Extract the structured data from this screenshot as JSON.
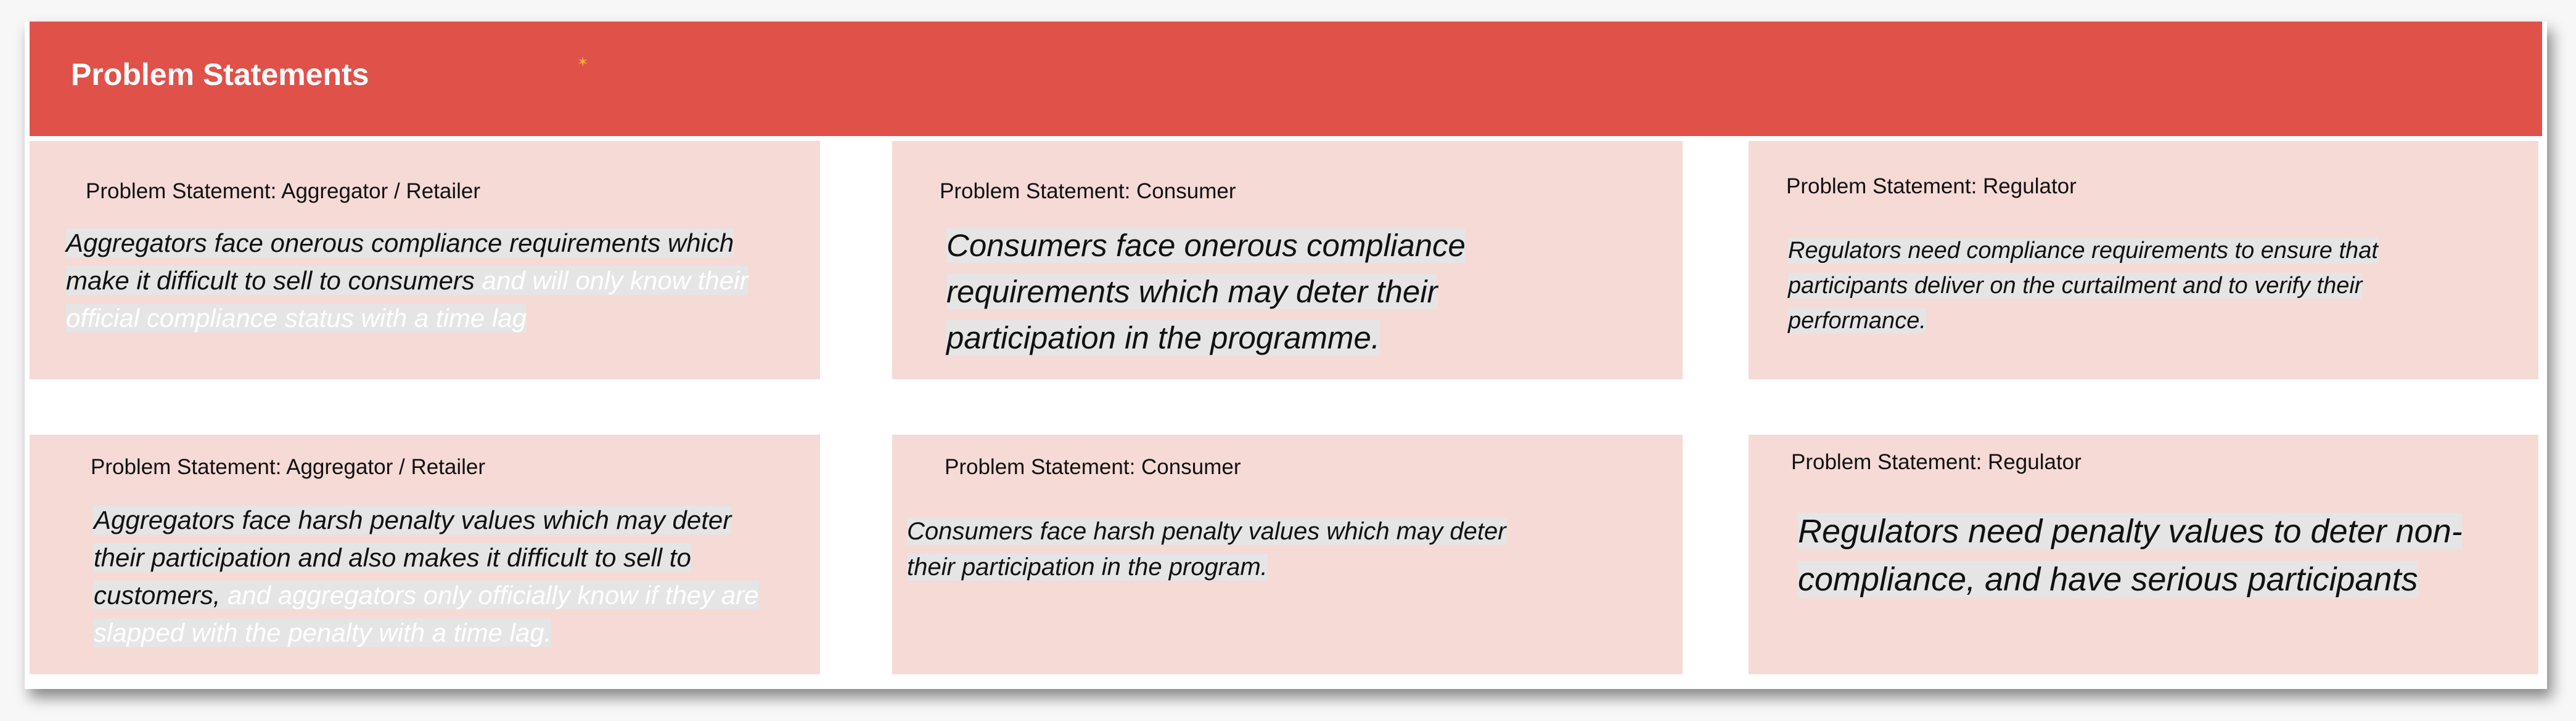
{
  "header": {
    "title": "Problem Statements",
    "color": "#e0514a",
    "icon": "star-sparkle-icon"
  },
  "cards": [
    {
      "label": "Problem Statement: Aggregator / Retailer",
      "text": "Aggregators face onerous compliance requirements which make it difficult to sell to consumers",
      "faded": " and will only know their official compliance status with a time lag"
    },
    {
      "label": "Problem Statement: Consumer",
      "text": "Consumers face onerous compliance requirements which may deter their participation in the programme.",
      "faded": ""
    },
    {
      "label": "Problem Statement: Regulator",
      "text": "Regulators need compliance requirements to ensure that participants deliver on the curtailment and to verify their performance.",
      "faded": ""
    },
    {
      "label": "Problem Statement: Aggregator / Retailer",
      "text": "Aggregators face harsh penalty values which may deter their participation and also makes it difficult to sell to customers,",
      "faded": " and aggregators only officially know if they are slapped with the penalty with a time lag."
    },
    {
      "label": "Problem Statement: Consumer",
      "text": "Consumers face harsh penalty values which may deter their participation in the program.",
      "faded": ""
    },
    {
      "label": "Problem Statement: Regulator",
      "text": "Regulators need penalty values to deter non-compliance, and have serious participants",
      "faded": ""
    }
  ],
  "colors": {
    "card": "#f5dad5",
    "highlight": "#e5e5e5"
  }
}
